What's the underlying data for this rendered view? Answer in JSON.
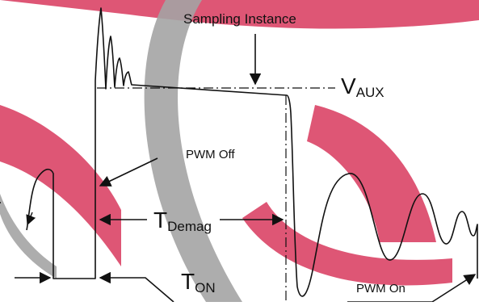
{
  "labels": {
    "sampling_instance": "Sampling Instance",
    "v_aux_main": "V",
    "v_aux_sub": "AUX",
    "pwm_off": "PWM Off",
    "t_demag_main": "T",
    "t_demag_sub": "Demag",
    "t_on_main": "T",
    "t_on_sub": "ON",
    "pwm_on": "PWM On"
  },
  "colors": {
    "watermark_red": "#d4214a",
    "watermark_gray": "#9a9a9a",
    "line": "#111111"
  }
}
